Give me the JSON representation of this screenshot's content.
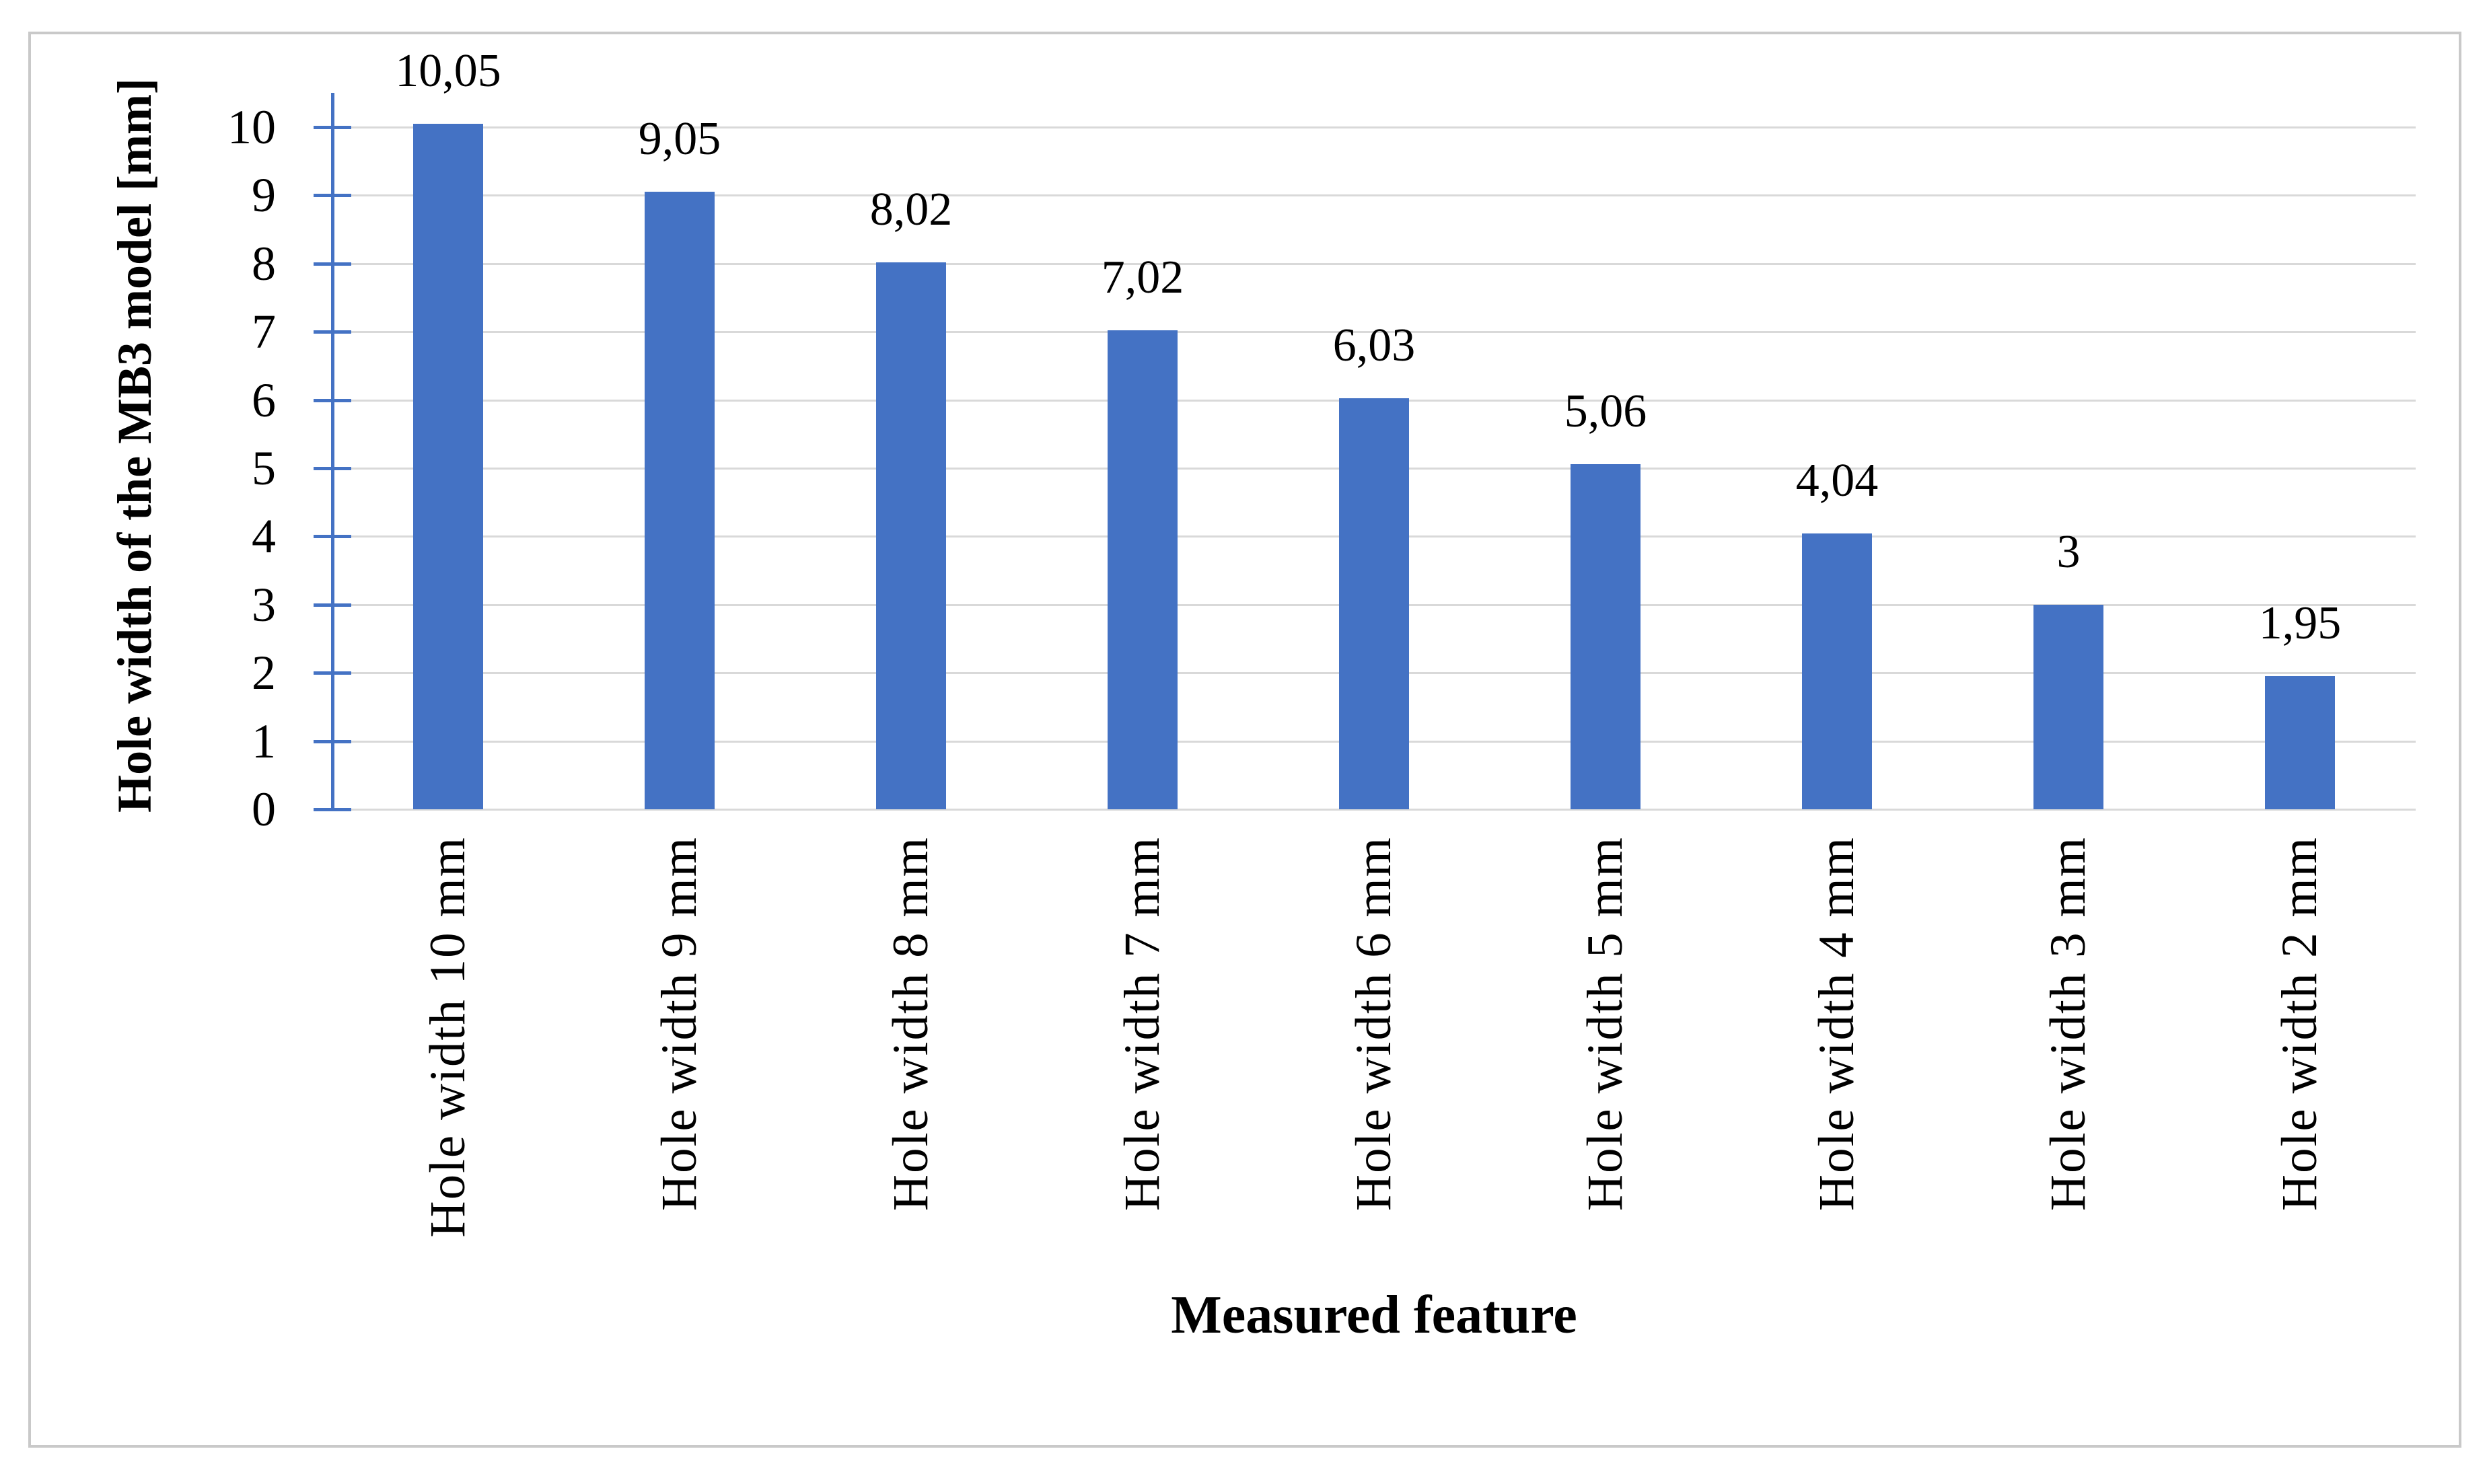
{
  "figure": {
    "background_color": "#ffffff",
    "border_color": "#c9c9c9"
  },
  "chart_data": {
    "type": "bar",
    "title": "",
    "xlabel": "Measured feature",
    "ylabel": "Hole width of the MB3 model [mm]",
    "categories": [
      "Hole width 10 mm",
      "Hole width 9 mm",
      "Hole width 8 mm",
      "Hole width 7 mm",
      "Hole width 6 mm",
      "Hole width 5 mm",
      "Hole width 4 mm",
      "Hole width 3 mm",
      "Hole width 2 mm"
    ],
    "values": [
      10.05,
      9.05,
      8.02,
      7.02,
      6.03,
      5.06,
      4.04,
      3,
      1.95
    ],
    "value_labels": [
      "10,05",
      "9,05",
      "8,02",
      "7,02",
      "6,03",
      "5,06",
      "4,04",
      "3",
      "1,95"
    ],
    "y_ticks": [
      0,
      1,
      2,
      3,
      4,
      5,
      6,
      7,
      8,
      9,
      10
    ],
    "ylim": [
      0,
      10.5
    ],
    "grid": true,
    "legend_position": "none",
    "bar_color": "#4472c4",
    "axis_color": "#4472c4",
    "gridline_color": "#d9d9d9",
    "label_color": "#000000"
  }
}
